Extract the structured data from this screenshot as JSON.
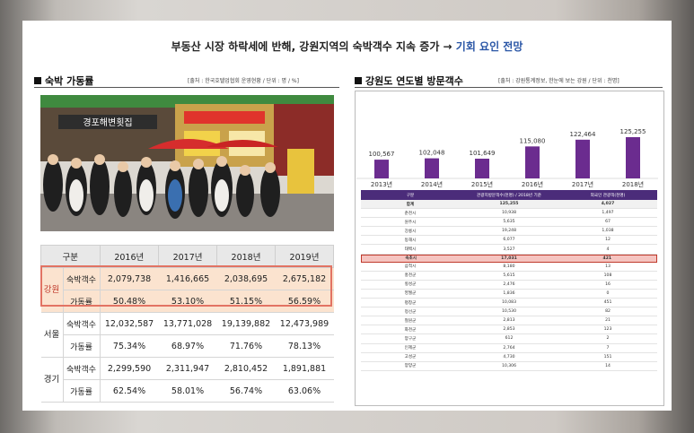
{
  "headline": {
    "main": "부동산 시장 하락세에 반해, 강원지역의 숙박객수 지속 증가 → ",
    "highlight": "기회 요인 전망"
  },
  "left": {
    "title": "숙박 가동률",
    "source": "[출처 : 한국호텔업협회 운영현황 / 단위 : 명 / %]",
    "table": {
      "header": [
        "구분",
        "2016년",
        "2017년",
        "2018년",
        "2019년"
      ],
      "groups": [
        {
          "name": "강원",
          "rows": [
            {
              "label": "숙박객수",
              "values": [
                "2,079,738",
                "1,416,665",
                "2,038,695",
                "2,675,182"
              ]
            },
            {
              "label": "가동률",
              "values": [
                "50.48%",
                "53.10%",
                "51.15%",
                "56.59%"
              ]
            }
          ]
        },
        {
          "name": "서울",
          "rows": [
            {
              "label": "숙박객수",
              "values": [
                "12,032,587",
                "13,771,028",
                "19,139,882",
                "12,473,989"
              ]
            },
            {
              "label": "가동률",
              "values": [
                "75.34%",
                "68.97%",
                "71.76%",
                "78.13%"
              ]
            }
          ]
        },
        {
          "name": "경기",
          "rows": [
            {
              "label": "숙박객수",
              "values": [
                "2,299,590",
                "2,311,947",
                "2,810,452",
                "1,891,881"
              ]
            },
            {
              "label": "가동률",
              "values": [
                "62.54%",
                "58.01%",
                "56.74%",
                "63.06%"
              ]
            }
          ]
        }
      ]
    },
    "photo_sign": "경포해변횟집"
  },
  "right": {
    "title": "강원도 연도별 방문객수",
    "source": "[출처 : 강원통계정보, 한눈에 보는 강원 / 단위 : 천명]",
    "chart_data": {
      "type": "bar",
      "categories": [
        "2013년",
        "2014년",
        "2015년",
        "2016년",
        "2017년",
        "2018년"
      ],
      "values": [
        100567,
        102048,
        101649,
        115080,
        122464,
        125255
      ],
      "labels": [
        "100,567",
        "102,048",
        "101,649",
        "115,080",
        "122,464",
        "125,255"
      ],
      "color": "#6b2c8f"
    },
    "table": {
      "header": [
        "구분",
        "관광지방문객수(천명) / 2018년 기준",
        "외국인 관광객(천명)"
      ],
      "rows": [
        [
          "합계",
          "125,255",
          "4,027"
        ],
        [
          "춘천시",
          "10,938",
          "1,497"
        ],
        [
          "원주시",
          "5,635",
          "67"
        ],
        [
          "강릉시",
          "19,248",
          "1,038"
        ],
        [
          "동해시",
          "6,077",
          "12"
        ],
        [
          "태백시",
          "3,527",
          "4"
        ],
        [
          "속초시",
          "17,031",
          "421"
        ],
        [
          "삼척시",
          "8,180",
          "13"
        ],
        [
          "홍천군",
          "5,615",
          "108"
        ],
        [
          "횡성군",
          "2,476",
          "16"
        ],
        [
          "영월군",
          "1,836",
          "0"
        ],
        [
          "평창군",
          "10,083",
          "451"
        ],
        [
          "정선군",
          "10,530",
          "82"
        ],
        [
          "철원군",
          "2,813",
          "21"
        ],
        [
          "화천군",
          "2,853",
          "123"
        ],
        [
          "양구군",
          "612",
          "2"
        ],
        [
          "인제군",
          "2,764",
          "7"
        ],
        [
          "고성군",
          "4,730",
          "151"
        ],
        [
          "양양군",
          "10,306",
          "14"
        ]
      ],
      "highlight_row": "속초시"
    }
  }
}
